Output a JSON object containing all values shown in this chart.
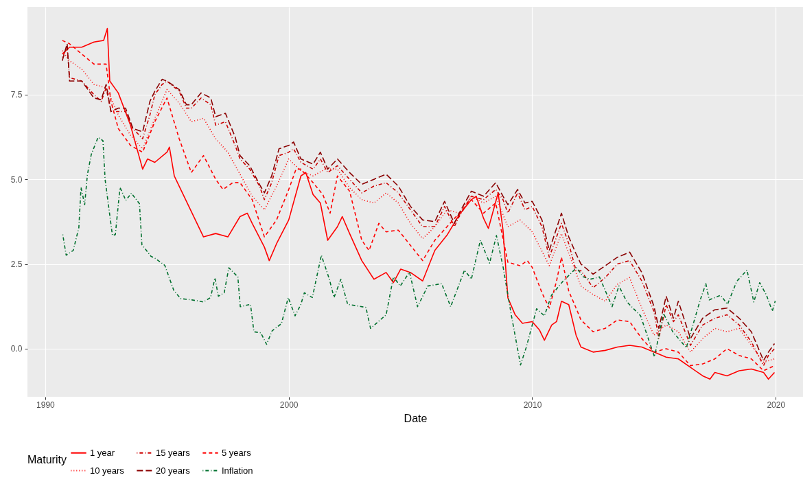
{
  "chart_data": {
    "type": "line",
    "xlabel": "Date",
    "legend_title": "Maturity",
    "legend": "bottom",
    "grid": true,
    "xlim": [
      1989.27,
      2021.12
    ],
    "xticks": [
      1990,
      2000,
      2010,
      2020
    ],
    "ylim": [
      -1.42,
      10.09
    ],
    "yticks": [
      {
        "value": 0,
        "label": "0.0"
      },
      {
        "value": 2.5,
        "label": "2.5"
      },
      {
        "value": 5,
        "label": "5.0"
      },
      {
        "value": 7.5,
        "label": "7.5"
      }
    ],
    "series": [
      {
        "name": "1 year",
        "color": "#ff0000",
        "line_style": "solid",
        "x": [
          1990.7,
          1991.0,
          1991.5,
          1992.0,
          1992.4,
          1992.55,
          1992.65,
          1993.0,
          1993.5,
          1994.0,
          1994.2,
          1994.5,
          1995.0,
          1995.1,
          1995.3,
          1995.5,
          1996.0,
          1996.5,
          1997.0,
          1997.5,
          1998.0,
          1998.3,
          1998.5,
          1999.0,
          1999.2,
          1999.5,
          2000.0,
          2000.5,
          2000.7,
          2001.0,
          2001.3,
          2001.6,
          2002.0,
          2002.2,
          2002.5,
          2003.0,
          2003.5,
          2004.0,
          2004.3,
          2004.6,
          2005.0,
          2005.5,
          2006.0,
          2006.5,
          2007.0,
          2007.5,
          2007.7,
          2008.0,
          2008.2,
          2008.6,
          2008.8,
          2009.0,
          2009.3,
          2009.6,
          2010.0,
          2010.3,
          2010.5,
          2010.8,
          2011.0,
          2011.2,
          2011.5,
          2011.8,
          2012.0,
          2012.5,
          2013.0,
          2013.5,
          2014.0,
          2014.5,
          2015.0,
          2015.5,
          2016.0,
          2016.5,
          2017.0,
          2017.3,
          2017.5,
          2018.0,
          2018.5,
          2019.0,
          2019.5,
          2019.7,
          2019.95
        ],
        "values": [
          8.7,
          8.9,
          8.9,
          9.05,
          9.1,
          9.45,
          7.9,
          7.55,
          6.6,
          5.3,
          5.6,
          5.5,
          5.8,
          5.95,
          5.1,
          4.8,
          4.05,
          3.3,
          3.4,
          3.3,
          3.9,
          4.0,
          3.7,
          3.0,
          2.6,
          3.1,
          3.8,
          5.1,
          5.2,
          4.55,
          4.3,
          3.2,
          3.6,
          3.9,
          3.4,
          2.6,
          2.05,
          2.25,
          1.95,
          2.35,
          2.25,
          2.0,
          2.9,
          3.35,
          3.95,
          4.4,
          4.5,
          3.85,
          3.55,
          4.6,
          3.5,
          1.5,
          1.0,
          0.75,
          0.8,
          0.55,
          0.25,
          0.7,
          0.8,
          1.4,
          1.3,
          0.4,
          0.05,
          -0.1,
          -0.05,
          0.05,
          0.1,
          0.05,
          -0.1,
          -0.25,
          -0.3,
          -0.55,
          -0.8,
          -0.9,
          -0.7,
          -0.8,
          -0.65,
          -0.6,
          -0.7,
          -0.9,
          -0.7
        ]
      },
      {
        "name": "15 years",
        "color": "#cd0000",
        "line_style": "dashdot",
        "x": [
          1990.7,
          1990.9,
          1991.0,
          1991.5,
          1992.0,
          1992.3,
          1992.5,
          1992.7,
          1993.0,
          1993.3,
          1993.6,
          1994.0,
          1994.3,
          1994.5,
          1994.8,
          1995.0,
          1995.5,
          1995.8,
          1996.0,
          1996.4,
          1996.8,
          1997.0,
          1997.4,
          1997.8,
          1998.0,
          1998.4,
          1998.8,
          1999.0,
          1999.3,
          1999.6,
          2000.0,
          2000.2,
          2000.5,
          2001.0,
          2001.3,
          2001.6,
          2002.0,
          2002.5,
          2003.0,
          2003.5,
          2004.0,
          2004.5,
          2005.0,
          2005.5,
          2006.0,
          2006.4,
          2006.8,
          2007.0,
          2007.5,
          2008.0,
          2008.5,
          2008.8,
          2009.0,
          2009.4,
          2009.7,
          2010.0,
          2010.4,
          2010.7,
          2011.2,
          2011.5,
          2011.8,
          2012.0,
          2012.5,
          2013.0,
          2013.5,
          2014.0,
          2014.5,
          2015.0,
          2015.2,
          2015.5,
          2015.8,
          2016.0,
          2016.5,
          2017.0,
          2017.5,
          2018.0,
          2018.5,
          2019.0,
          2019.5,
          2019.7,
          2019.95
        ],
        "values": [
          8.6,
          8.9,
          8.0,
          7.9,
          7.5,
          7.3,
          7.7,
          7.0,
          7.0,
          7.0,
          6.5,
          6.2,
          6.9,
          7.5,
          7.8,
          7.9,
          7.6,
          7.1,
          7.1,
          7.4,
          7.2,
          6.6,
          6.7,
          6.0,
          5.6,
          5.3,
          4.8,
          4.4,
          4.9,
          5.7,
          5.8,
          5.9,
          5.5,
          5.3,
          5.6,
          5.2,
          5.4,
          5.0,
          4.6,
          4.8,
          4.9,
          4.6,
          4.1,
          3.6,
          3.6,
          4.2,
          3.6,
          3.9,
          4.5,
          4.4,
          4.7,
          4.4,
          4.0,
          4.6,
          4.1,
          4.2,
          3.6,
          2.7,
          3.7,
          3.1,
          2.3,
          2.3,
          1.8,
          2.1,
          2.5,
          2.6,
          2.0,
          1.1,
          0.3,
          1.3,
          0.8,
          1.0,
          0.1,
          0.7,
          0.9,
          1.0,
          0.7,
          0.2,
          -0.5,
          -0.2,
          0.0
        ]
      },
      {
        "name": "5 years",
        "color": "#ff0000",
        "line_style": "dashed",
        "x": [
          1990.7,
          1991.0,
          1991.5,
          1992.0,
          1992.5,
          1992.7,
          1993.0,
          1993.5,
          1994.0,
          1994.5,
          1995.0,
          1995.5,
          1996.0,
          1996.5,
          1997.0,
          1997.3,
          1997.7,
          1998.0,
          1998.5,
          1999.0,
          1999.5,
          2000.0,
          2000.3,
          2000.5,
          2001.0,
          2001.4,
          2001.7,
          2002.0,
          2002.5,
          2003.0,
          2003.3,
          2003.7,
          2004.0,
          2004.5,
          2005.0,
          2005.5,
          2006.0,
          2006.5,
          2007.0,
          2007.5,
          2008.0,
          2008.5,
          2009.0,
          2009.5,
          2009.8,
          2010.0,
          2010.4,
          2010.7,
          2011.0,
          2011.2,
          2011.5,
          2011.8,
          2012.0,
          2012.5,
          2013.0,
          2013.5,
          2014.0,
          2014.5,
          2015.0,
          2015.5,
          2016.0,
          2016.5,
          2017.0,
          2017.5,
          2018.0,
          2018.5,
          2019.0,
          2019.5,
          2019.95
        ],
        "values": [
          9.1,
          9.0,
          8.7,
          8.4,
          8.4,
          7.3,
          6.5,
          6.0,
          5.8,
          6.7,
          7.4,
          6.2,
          5.2,
          5.7,
          5.0,
          4.7,
          4.9,
          4.9,
          4.4,
          3.3,
          3.8,
          4.7,
          5.3,
          5.3,
          4.9,
          4.55,
          4.0,
          5.1,
          4.65,
          3.2,
          2.9,
          3.7,
          3.45,
          3.5,
          3.05,
          2.6,
          3.2,
          3.6,
          4.0,
          4.4,
          4.0,
          4.3,
          2.55,
          2.45,
          2.6,
          2.4,
          1.65,
          1.2,
          2.0,
          2.7,
          1.7,
          1.2,
          0.85,
          0.5,
          0.6,
          0.85,
          0.8,
          0.3,
          -0.1,
          0.0,
          -0.1,
          -0.5,
          -0.45,
          -0.3,
          0.0,
          -0.2,
          -0.3,
          -0.65,
          -0.5
        ]
      },
      {
        "name": "10 years",
        "color": "#ff0000",
        "line_style": "dotted",
        "x": [
          1990.7,
          1991.0,
          1991.5,
          1992.0,
          1992.5,
          1992.7,
          1993.0,
          1993.5,
          1994.0,
          1994.5,
          1995.0,
          1995.5,
          1996.0,
          1996.5,
          1997.0,
          1997.5,
          1998.0,
          1998.5,
          1999.0,
          1999.5,
          2000.0,
          2000.5,
          2001.0,
          2001.5,
          2002.0,
          2002.5,
          2003.0,
          2003.5,
          2004.0,
          2004.5,
          2005.0,
          2005.5,
          2006.0,
          2006.5,
          2007.0,
          2007.5,
          2008.0,
          2008.5,
          2009.0,
          2009.5,
          2010.0,
          2010.7,
          2011.2,
          2012.0,
          2012.5,
          2013.0,
          2013.5,
          2014.0,
          2014.5,
          2015.0,
          2015.5,
          2016.0,
          2016.5,
          2017.0,
          2017.5,
          2018.0,
          2018.5,
          2019.0,
          2019.5,
          2019.95
        ],
        "values": [
          8.8,
          8.5,
          8.25,
          7.8,
          7.7,
          7.4,
          6.9,
          6.3,
          5.9,
          6.8,
          7.65,
          7.25,
          6.7,
          6.8,
          6.2,
          5.8,
          5.15,
          4.5,
          4.1,
          4.8,
          5.6,
          5.25,
          5.1,
          5.3,
          5.3,
          4.75,
          4.4,
          4.3,
          4.6,
          4.3,
          3.7,
          3.25,
          3.6,
          4.1,
          4.0,
          4.5,
          4.3,
          4.5,
          3.6,
          3.8,
          3.45,
          2.45,
          3.4,
          1.85,
          1.6,
          1.4,
          1.9,
          2.1,
          1.2,
          0.4,
          0.7,
          0.5,
          -0.1,
          0.3,
          0.6,
          0.5,
          0.6,
          0.1,
          -0.4,
          -0.3
        ]
      },
      {
        "name": "20 years",
        "color": "#8b0000",
        "line_style": "longdash",
        "x": [
          1990.7,
          1990.9,
          1991.0,
          1991.5,
          1992.0,
          1992.3,
          1992.5,
          1992.7,
          1993.0,
          1993.3,
          1993.6,
          1994.0,
          1994.3,
          1994.5,
          1994.8,
          1995.0,
          1995.5,
          1995.8,
          1996.0,
          1996.4,
          1996.8,
          1997.0,
          1997.4,
          1997.8,
          1998.0,
          1998.4,
          1998.8,
          1999.0,
          1999.3,
          1999.6,
          2000.0,
          2000.2,
          2000.5,
          2001.0,
          2001.3,
          2001.6,
          2002.0,
          2002.5,
          2003.0,
          2003.5,
          2004.0,
          2004.5,
          2005.0,
          2005.5,
          2006.0,
          2006.4,
          2006.8,
          2007.0,
          2007.5,
          2008.0,
          2008.5,
          2008.8,
          2009.0,
          2009.4,
          2009.7,
          2010.0,
          2010.4,
          2010.7,
          2011.2,
          2011.5,
          2011.8,
          2012.0,
          2012.5,
          2013.0,
          2013.5,
          2014.0,
          2014.5,
          2015.0,
          2015.2,
          2015.5,
          2015.8,
          2016.0,
          2016.5,
          2017.0,
          2017.5,
          2018.0,
          2018.5,
          2019.0,
          2019.5,
          2019.7,
          2019.95
        ],
        "values": [
          8.5,
          9.0,
          7.9,
          7.9,
          7.4,
          7.35,
          7.8,
          7.0,
          7.1,
          7.1,
          6.5,
          6.4,
          7.3,
          7.6,
          7.95,
          7.9,
          7.65,
          7.2,
          7.2,
          7.55,
          7.4,
          6.85,
          6.95,
          6.25,
          5.7,
          5.4,
          4.85,
          4.6,
          5.1,
          5.9,
          6.0,
          6.1,
          5.6,
          5.45,
          5.8,
          5.3,
          5.6,
          5.2,
          4.85,
          5.0,
          5.15,
          4.8,
          4.2,
          3.8,
          3.75,
          4.35,
          3.7,
          4.0,
          4.65,
          4.5,
          4.9,
          4.5,
          4.25,
          4.7,
          4.3,
          4.35,
          3.8,
          2.9,
          4.0,
          3.3,
          2.8,
          2.5,
          2.2,
          2.45,
          2.7,
          2.85,
          2.25,
          1.25,
          0.6,
          1.55,
          0.9,
          1.4,
          0.3,
          0.9,
          1.15,
          1.2,
          0.9,
          0.5,
          -0.35,
          -0.1,
          0.15
        ]
      },
      {
        "name": "Inflation",
        "color": "#00702e",
        "line_style": "dashdot",
        "x": [
          1990.72,
          1990.86,
          1991.15,
          1991.38,
          1991.47,
          1991.62,
          1991.73,
          1991.89,
          1992.17,
          1992.37,
          1992.46,
          1992.76,
          1992.88,
          1993.07,
          1993.31,
          1993.54,
          1993.87,
          1993.97,
          1994.34,
          1994.53,
          1994.91,
          1995.28,
          1995.56,
          1996.03,
          1996.5,
          1996.79,
          1996.97,
          1997.11,
          1997.35,
          1997.54,
          1997.91,
          1998.01,
          1998.43,
          1998.57,
          1998.85,
          1999.09,
          1999.32,
          1999.7,
          1999.98,
          2000.26,
          2000.5,
          2000.64,
          2000.97,
          2001.34,
          2001.67,
          2001.86,
          2002.14,
          2002.42,
          2003.17,
          2003.36,
          2004.0,
          2004.3,
          2004.58,
          2004.96,
          2005.29,
          2005.71,
          2006.28,
          2006.65,
          2007.22,
          2007.5,
          2007.87,
          2008.25,
          2008.53,
          2008.81,
          2009.14,
          2009.52,
          2009.75,
          2010.18,
          2010.5,
          2010.79,
          2011.26,
          2011.82,
          2012.1,
          2012.38,
          2012.76,
          2013.28,
          2013.56,
          2013.89,
          2014.45,
          2015.02,
          2015.39,
          2015.77,
          2016.33,
          2016.9,
          2017.13,
          2017.27,
          2017.74,
          2018.02,
          2018.4,
          2018.82,
          2019.1,
          2019.34,
          2019.62,
          2019.86,
          2019.98
        ],
        "values": [
          3.37,
          2.76,
          2.9,
          3.57,
          4.76,
          4.25,
          5.13,
          5.73,
          6.24,
          6.14,
          4.99,
          3.34,
          3.37,
          4.76,
          4.38,
          4.59,
          4.28,
          3.07,
          2.73,
          2.66,
          2.46,
          1.72,
          1.48,
          1.44,
          1.38,
          1.51,
          2.09,
          1.55,
          1.65,
          2.39,
          2.12,
          1.24,
          1.31,
          0.5,
          0.47,
          0.13,
          0.53,
          0.74,
          1.51,
          0.97,
          1.31,
          1.65,
          1.51,
          2.76,
          2.05,
          1.51,
          2.05,
          1.31,
          1.22,
          0.6,
          1.0,
          2.12,
          1.85,
          2.26,
          1.24,
          1.85,
          1.92,
          1.24,
          2.32,
          2.05,
          3.2,
          2.53,
          3.34,
          2.39,
          1.0,
          -0.48,
          0.03,
          1.18,
          0.97,
          1.58,
          1.99,
          2.39,
          2.12,
          2.05,
          2.12,
          1.24,
          1.85,
          1.38,
          0.97,
          -0.24,
          1.04,
          0.5,
          0.03,
          1.44,
          1.92,
          1.44,
          1.58,
          1.31,
          1.99,
          2.32,
          1.38,
          1.95,
          1.58,
          1.11,
          1.41
        ]
      }
    ]
  }
}
